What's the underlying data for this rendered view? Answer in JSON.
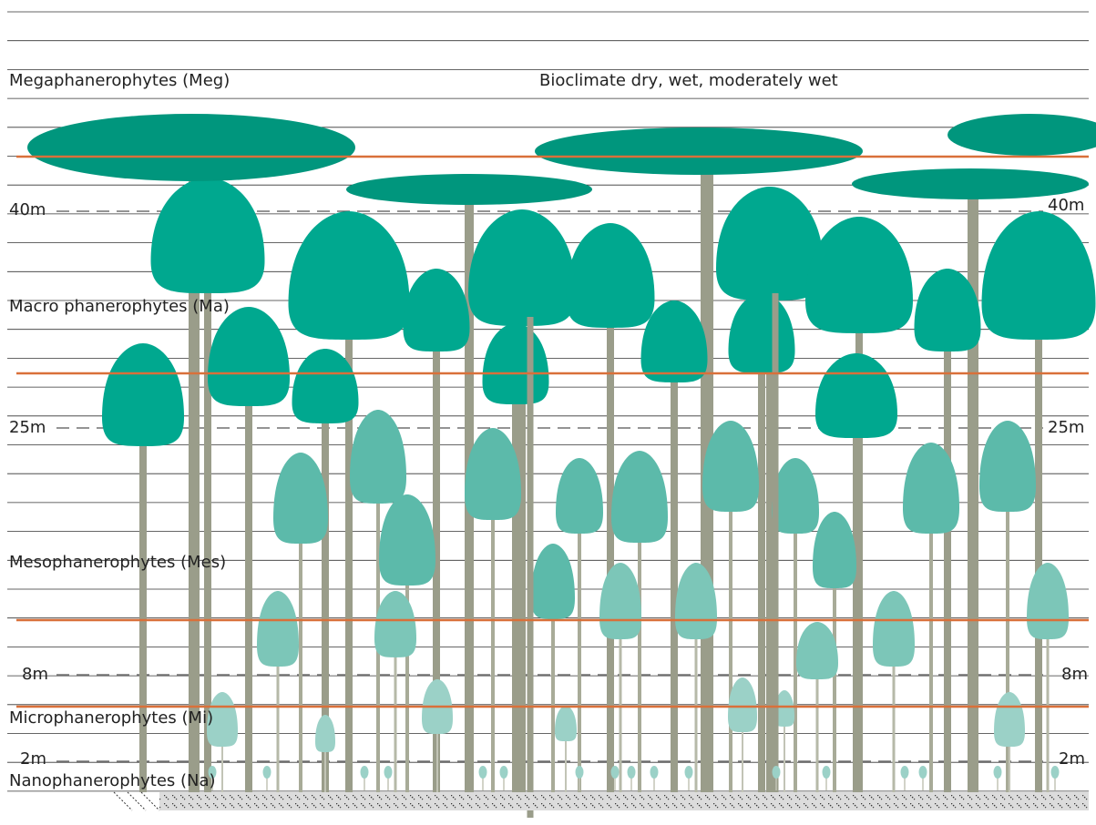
{
  "title": "Bioclimate dry, wet, moderately wet",
  "zones": [
    {
      "label": "Megaphanerophytes (Meg)"
    },
    {
      "label": "Macro phanerophytes (Ma)"
    },
    {
      "label": "Mesophanerophytes (Mes)"
    },
    {
      "label": "Microphanerophytes (Mi)"
    },
    {
      "label": "Nanophanerophytes (Na)"
    }
  ],
  "height_marks": [
    {
      "label": "40m"
    },
    {
      "label": "25m"
    },
    {
      "label": "8m"
    },
    {
      "label": "2m"
    }
  ]
}
